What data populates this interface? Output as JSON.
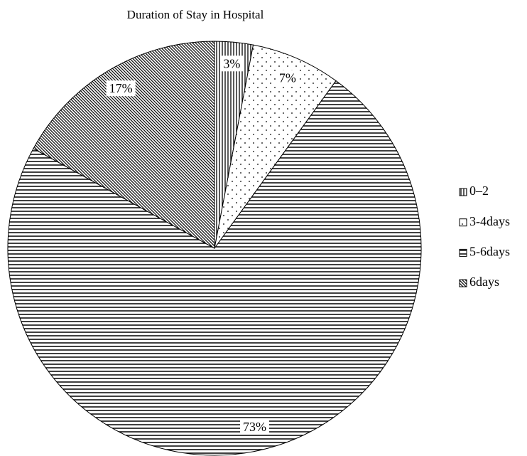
{
  "chart_data": {
    "type": "pie",
    "title": "Duration of Stay in Hospital",
    "categories": [
      "0–2",
      "3-4days",
      "5-6days",
      "6days"
    ],
    "values": [
      3,
      7,
      73,
      17
    ],
    "value_labels": [
      "3%",
      "7%",
      "73%",
      "17%"
    ],
    "patterns": [
      "vertical",
      "dots",
      "horizontal",
      "diagonal"
    ],
    "legend": "right"
  }
}
